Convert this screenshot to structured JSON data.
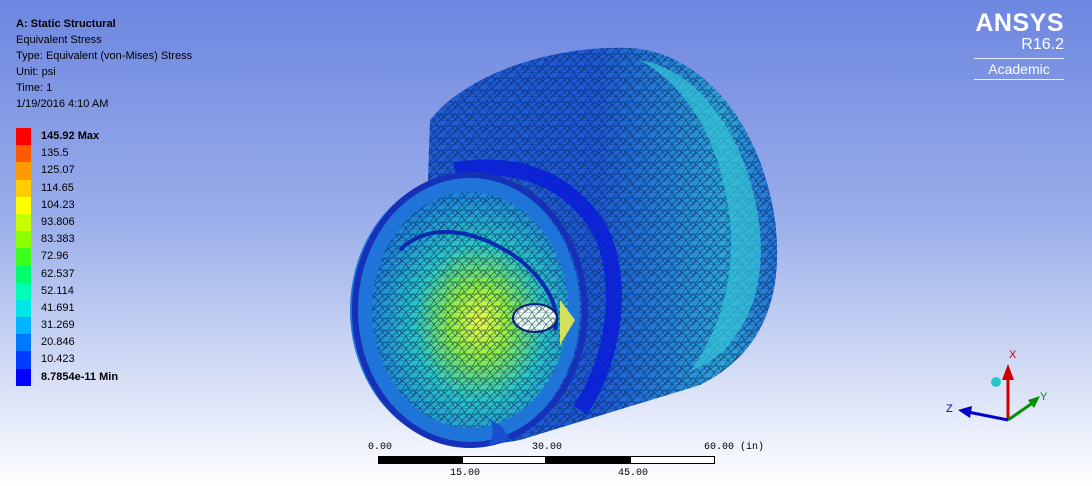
{
  "info": {
    "title": "A: Static Structural",
    "result": "Equivalent Stress",
    "type": "Type: Equivalent (von-Mises) Stress",
    "unit": "Unit: psi",
    "time": "Time: 1",
    "date": "1/19/2016 4:10 AM"
  },
  "legend": {
    "items": [
      {
        "label": "145.92 Max",
        "color": "#ff0000",
        "bold": true
      },
      {
        "label": "135.5",
        "color": "#ff5a00"
      },
      {
        "label": "125.07",
        "color": "#ff9a00"
      },
      {
        "label": "114.65",
        "color": "#ffcc00"
      },
      {
        "label": "104.23",
        "color": "#ffff00"
      },
      {
        "label": "93.806",
        "color": "#c8ff00"
      },
      {
        "label": "83.383",
        "color": "#8cff00"
      },
      {
        "label": "72.96",
        "color": "#3cff1e"
      },
      {
        "label": "62.537",
        "color": "#00ff6e"
      },
      {
        "label": "52.114",
        "color": "#00ffb4"
      },
      {
        "label": "41.691",
        "color": "#00e6e6"
      },
      {
        "label": "31.269",
        "color": "#00b4ff"
      },
      {
        "label": "20.846",
        "color": "#0078ff"
      },
      {
        "label": "10.423",
        "color": "#003cff"
      },
      {
        "label": "8.7854e-11 Min",
        "color": "#0000ff",
        "bold": true
      }
    ]
  },
  "brand": {
    "name": "ANSYS",
    "version": "R16.2",
    "edition": "Academic"
  },
  "scale": {
    "top_labels": [
      "0.00",
      "30.00",
      "60.00 (in)"
    ],
    "bottom_labels": [
      "15.00",
      "45.00"
    ]
  },
  "triad": {
    "x": "X",
    "y": "Y",
    "z": "Z"
  }
}
